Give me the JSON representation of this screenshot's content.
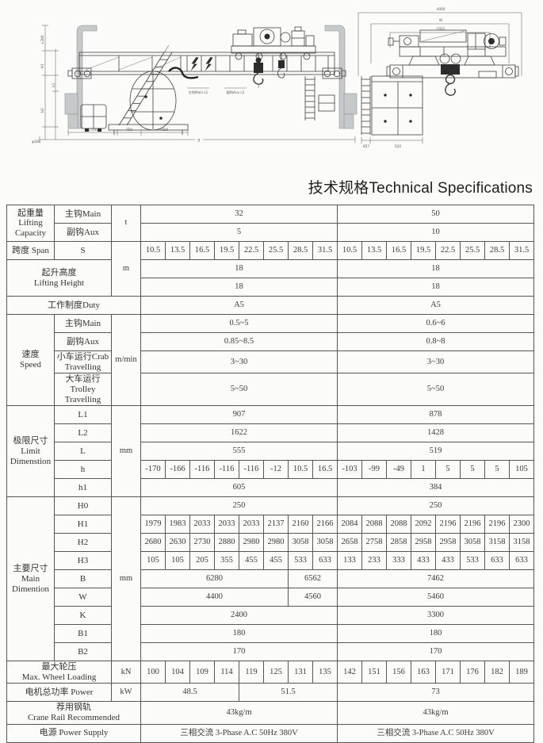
{
  "title": "技术规格Technical Specifications",
  "drawing": {
    "labels": {
      "main_hook": "主钩Main L1",
      "aux_hook": "副钩Aux L2",
      "dim_1700": "1700",
      "dim_750": "750",
      "dim_7650": "7650",
      "dim_phi100": "φ100",
      "dim_span": "S",
      "dim_pm200": "±200",
      "dim_H1": "H1",
      "dim_h1": "h1",
      "dim_H2": "H2",
      "dim_4000": "4000",
      "dim_W": "W",
      "dim_1932": "1932",
      "dim_857": "857",
      "dim_520": "520"
    }
  },
  "table": {
    "rows": [
      [
        {
          "t": "起重量\nLifting\nCapacity",
          "k": "label",
          "rs": 2
        },
        {
          "t": "主钩Main",
          "k": "label"
        },
        {
          "t": "t",
          "k": "unit",
          "rs": 2
        },
        {
          "t": "32",
          "cs": 8
        },
        {
          "t": "50",
          "cs": 8
        }
      ],
      [
        {
          "t": "副钩Aux",
          "k": "label"
        },
        {
          "t": "5",
          "cs": 8
        },
        {
          "t": "10",
          "cs": 8
        }
      ],
      [
        {
          "t": "跨度 Span",
          "k": "label"
        },
        {
          "t": "S",
          "k": "label"
        },
        {
          "t": "m",
          "k": "unit",
          "rs": 3
        },
        {
          "t": "10.5"
        },
        {
          "t": "13.5"
        },
        {
          "t": "16.5"
        },
        {
          "t": "19.5"
        },
        {
          "t": "22.5"
        },
        {
          "t": "25.5"
        },
        {
          "t": "28.5"
        },
        {
          "t": "31.5"
        },
        {
          "t": "10.5"
        },
        {
          "t": "13.5"
        },
        {
          "t": "16.5"
        },
        {
          "t": "19.5"
        },
        {
          "t": "22.5"
        },
        {
          "t": "25.5"
        },
        {
          "t": "28.5"
        },
        {
          "t": "31.5"
        }
      ],
      [
        {
          "t": "起升高度\nLifting Height",
          "k": "label",
          "cs": 2,
          "rs": 2
        },
        {
          "t": "18",
          "cs": 8
        },
        {
          "t": "18",
          "cs": 8
        }
      ],
      [
        {
          "t": "18",
          "cs": 8
        },
        {
          "t": "18",
          "cs": 8
        }
      ],
      [
        {
          "t": "工作制度Duty",
          "k": "label",
          "cs": 3
        },
        {
          "t": "A5",
          "cs": 8
        },
        {
          "t": "A5",
          "cs": 8
        }
      ],
      [
        {
          "t": "速度\nSpeed",
          "k": "label",
          "rs": 4
        },
        {
          "t": "主钩Main",
          "k": "label"
        },
        {
          "t": "m/min",
          "k": "unit",
          "rs": 4
        },
        {
          "t": "0.5~5",
          "cs": 8
        },
        {
          "t": "0.6~6",
          "cs": 8
        }
      ],
      [
        {
          "t": "副钩Aux",
          "k": "label"
        },
        {
          "t": "0.85~8.5",
          "cs": 8
        },
        {
          "t": "0.8~8",
          "cs": 8
        }
      ],
      [
        {
          "t": "小车运行Crab\nTravelling",
          "k": "label"
        },
        {
          "t": "3~30",
          "cs": 8
        },
        {
          "t": "3~30",
          "cs": 8
        }
      ],
      [
        {
          "t": "大车运行\nTrolley\nTravelling",
          "k": "label"
        },
        {
          "t": "5~50",
          "cs": 8
        },
        {
          "t": "5~50",
          "cs": 8
        }
      ],
      [
        {
          "t": "极限尺寸\nLimit\nDimenstion",
          "k": "label",
          "rs": 5
        },
        {
          "t": "L1",
          "k": "label"
        },
        {
          "t": "mm",
          "k": "unit",
          "rs": 5
        },
        {
          "t": "907",
          "cs": 8
        },
        {
          "t": "878",
          "cs": 8
        }
      ],
      [
        {
          "t": "L2",
          "k": "label"
        },
        {
          "t": "1622",
          "cs": 8
        },
        {
          "t": "1428",
          "cs": 8
        }
      ],
      [
        {
          "t": "L",
          "k": "label"
        },
        {
          "t": "555",
          "cs": 8
        },
        {
          "t": "519",
          "cs": 8
        }
      ],
      [
        {
          "t": "h",
          "k": "label"
        },
        {
          "t": "-170"
        },
        {
          "t": "-166"
        },
        {
          "t": "-116"
        },
        {
          "t": "-116"
        },
        {
          "t": "-116"
        },
        {
          "t": "-12"
        },
        {
          "t": "10.5"
        },
        {
          "t": "16.5"
        },
        {
          "t": "-103"
        },
        {
          "t": "-99"
        },
        {
          "t": "-49"
        },
        {
          "t": "1"
        },
        {
          "t": "5"
        },
        {
          "t": "5"
        },
        {
          "t": "5"
        },
        {
          "t": "105"
        }
      ],
      [
        {
          "t": "h1",
          "k": "label"
        },
        {
          "t": "605",
          "cs": 8
        },
        {
          "t": "384",
          "cs": 8
        }
      ],
      [
        {
          "t": "主要尺寸\nMain\nDimention",
          "k": "label",
          "rs": 9
        },
        {
          "t": "H0",
          "k": "label"
        },
        {
          "t": "mm",
          "k": "unit",
          "rs": 9
        },
        {
          "t": "250",
          "cs": 8
        },
        {
          "t": "250",
          "cs": 8
        }
      ],
      [
        {
          "t": "H1",
          "k": "label"
        },
        {
          "t": "1979"
        },
        {
          "t": "1983"
        },
        {
          "t": "2033"
        },
        {
          "t": "2033"
        },
        {
          "t": "2033"
        },
        {
          "t": "2137"
        },
        {
          "t": "2160"
        },
        {
          "t": "2166"
        },
        {
          "t": "2084"
        },
        {
          "t": "2088"
        },
        {
          "t": "2088"
        },
        {
          "t": "2092"
        },
        {
          "t": "2196"
        },
        {
          "t": "2196"
        },
        {
          "t": "2196"
        },
        {
          "t": "2300"
        }
      ],
      [
        {
          "t": "H2",
          "k": "label"
        },
        {
          "t": "2680"
        },
        {
          "t": "2630"
        },
        {
          "t": "2730"
        },
        {
          "t": "2880"
        },
        {
          "t": "2980"
        },
        {
          "t": "2980"
        },
        {
          "t": "3058"
        },
        {
          "t": "3058"
        },
        {
          "t": "2658"
        },
        {
          "t": "2758"
        },
        {
          "t": "2858"
        },
        {
          "t": "2958"
        },
        {
          "t": "2958"
        },
        {
          "t": "3058"
        },
        {
          "t": "3158"
        },
        {
          "t": "3158"
        }
      ],
      [
        {
          "t": "H3",
          "k": "label"
        },
        {
          "t": "105"
        },
        {
          "t": "105"
        },
        {
          "t": "205"
        },
        {
          "t": "355"
        },
        {
          "t": "455"
        },
        {
          "t": "455"
        },
        {
          "t": "533"
        },
        {
          "t": "633"
        },
        {
          "t": "133"
        },
        {
          "t": "233"
        },
        {
          "t": "333"
        },
        {
          "t": "433"
        },
        {
          "t": "433"
        },
        {
          "t": "533"
        },
        {
          "t": "633"
        },
        {
          "t": "633"
        }
      ],
      [
        {
          "t": "B",
          "k": "label"
        },
        {
          "t": "6280",
          "cs": 6
        },
        {
          "t": "6562",
          "cs": 2
        },
        {
          "t": "7462",
          "cs": 8
        }
      ],
      [
        {
          "t": "W",
          "k": "label"
        },
        {
          "t": "4400",
          "cs": 6
        },
        {
          "t": "4560",
          "cs": 2
        },
        {
          "t": "5460",
          "cs": 8
        }
      ],
      [
        {
          "t": "K",
          "k": "label"
        },
        {
          "t": "2400",
          "cs": 8
        },
        {
          "t": "3300",
          "cs": 8
        }
      ],
      [
        {
          "t": "B1",
          "k": "label"
        },
        {
          "t": "180",
          "cs": 8
        },
        {
          "t": "180",
          "cs": 8
        }
      ],
      [
        {
          "t": "B2",
          "k": "label"
        },
        {
          "t": "170",
          "cs": 8
        },
        {
          "t": "170",
          "cs": 8
        }
      ],
      [
        {
          "t": "最大轮压\nMax. Wheel Loading",
          "k": "label",
          "cs": 2
        },
        {
          "t": "kN",
          "k": "unit"
        },
        {
          "t": "100"
        },
        {
          "t": "104"
        },
        {
          "t": "109"
        },
        {
          "t": "114"
        },
        {
          "t": "119"
        },
        {
          "t": "125"
        },
        {
          "t": "131"
        },
        {
          "t": "135"
        },
        {
          "t": "142"
        },
        {
          "t": "151"
        },
        {
          "t": "156"
        },
        {
          "t": "163"
        },
        {
          "t": "171"
        },
        {
          "t": "176"
        },
        {
          "t": "182"
        },
        {
          "t": "189"
        }
      ],
      [
        {
          "t": "电机总功率 Power",
          "k": "label",
          "cs": 2
        },
        {
          "t": "kW",
          "k": "unit"
        },
        {
          "t": "48.5",
          "cs": 4
        },
        {
          "t": "51.5",
          "cs": 4
        },
        {
          "t": "73",
          "cs": 8
        }
      ],
      [
        {
          "t": "荐用钢轨\nCrane Rail Recommended",
          "k": "label",
          "cs": 3
        },
        {
          "t": "43kg/m",
          "cs": 8
        },
        {
          "t": "43kg/m",
          "cs": 8
        }
      ],
      [
        {
          "t": "电源 Power Supply",
          "k": "label",
          "cs": 3
        },
        {
          "t": "三相交流 3-Phase A.C 50Hz  380V",
          "cs": 8
        },
        {
          "t": "三相交流 3-Phase A.C 50Hz  380V",
          "cs": 8
        }
      ]
    ]
  }
}
